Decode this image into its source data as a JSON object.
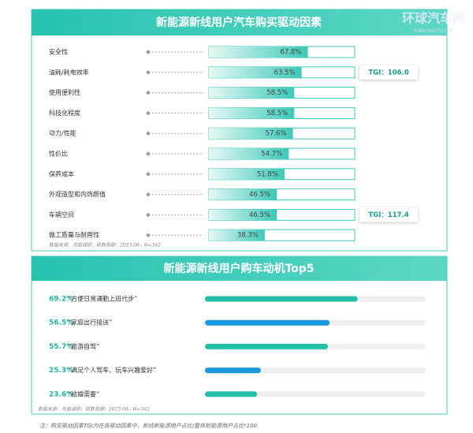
{
  "chart_data": [
    {
      "type": "bar",
      "orientation": "horizontal",
      "title": "新能源新线用户汽车购买驱动因素",
      "categories": [
        "安全性",
        "油耗/耗电效率",
        "使用便利性",
        "科技化程度",
        "动力/性能",
        "性价比",
        "保养成本",
        "外观造型和内饰颜值",
        "车辆空间",
        "做工质量与耐用性"
      ],
      "values": [
        67.8,
        63.5,
        58.5,
        58.5,
        57.6,
        54.7,
        51.8,
        46.5,
        46.5,
        38.3
      ],
      "value_labels": [
        "67.8%",
        "63.5%",
        "58.5%",
        "58.5%",
        "57.6%",
        "54.7%",
        "51.8%",
        "46.5%",
        "46.5%",
        "38.3%"
      ],
      "tgi_values": [
        null,
        106.0,
        null,
        null,
        null,
        null,
        null,
        null,
        117.4,
        null
      ],
      "tgi_labels": [
        null,
        "TGI：106.0",
        null,
        null,
        null,
        null,
        null,
        null,
        "TGI：117.4",
        null
      ],
      "color": "#3cc9b8",
      "xlim": [
        0,
        100
      ],
      "source": "数据来源：月狐调研；取数周期：2023.06，N=342"
    },
    {
      "type": "bar",
      "orientation": "horizontal",
      "title": "新能源新线用户购车动机Top5",
      "categories": [
        "“方便日常通勤上班代步”",
        "“家庭出行接送”",
        "“旅游自驾”",
        "“满足个人驾车、玩车兴趣爱好”",
        "“结婚需要”"
      ],
      "values": [
        69.2,
        56.5,
        55.7,
        25.3,
        23.6
      ],
      "value_labels": [
        "69.2%",
        "56.5%",
        "55.7%",
        "25.3%",
        "23.6%"
      ],
      "colors": [
        "#21bfa6",
        "#1a98dd",
        "#21bfa6",
        "#1a98dd",
        "#21bfa6"
      ],
      "xlim": [
        0,
        100
      ],
      "source": "数据来源：月狐调研；取数周期：2023.06，N=342"
    }
  ],
  "watermark": "环球汽车网",
  "watermark_sub": "HUANQIUAUTO.COM",
  "footnote": "注：购买驱动因素TGI为在各驱动因素中，新线新能源用户占比/整体新能源用户占比*100"
}
